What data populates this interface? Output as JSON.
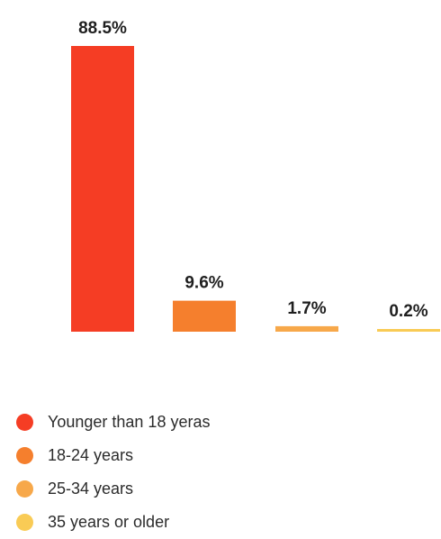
{
  "chart_data": {
    "type": "bar",
    "categories": [
      "Younger than 18 yeras",
      "18-24 years",
      "25-34 years",
      "35 years or older"
    ],
    "values": [
      88.5,
      9.6,
      1.7,
      0.2
    ],
    "value_labels": [
      "88.5%",
      "9.6%",
      "1.7%",
      "0.2%"
    ],
    "colors": [
      "#f53d24",
      "#f57f2d",
      "#f7a84a",
      "#f9cb55"
    ],
    "ylim": [
      0,
      88.5
    ],
    "grid": false,
    "legend_position": "bottom-left"
  },
  "legend": {
    "items": [
      {
        "label": "Younger than 18 yeras",
        "color": "#f53d24"
      },
      {
        "label": "18-24 years",
        "color": "#f57f2d"
      },
      {
        "label": "25-34 years",
        "color": "#f7a84a"
      },
      {
        "label": "35 years or older",
        "color": "#f9cb55"
      }
    ]
  }
}
